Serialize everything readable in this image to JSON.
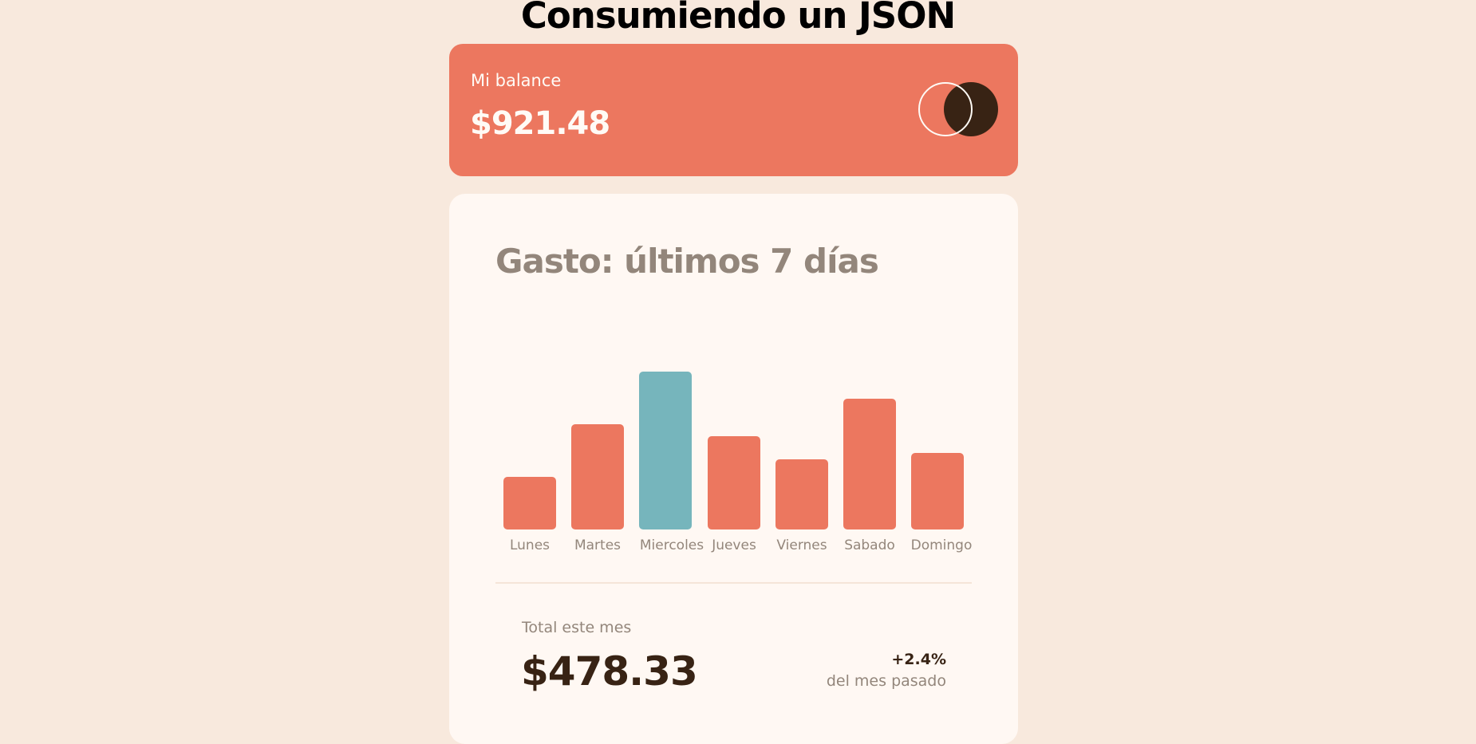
{
  "page": {
    "title": "Consumiendo un JSON"
  },
  "balance": {
    "label": "Mi balance",
    "amount": "$921.48"
  },
  "spending": {
    "title": "Gasto: últimos 7 días",
    "total_label": "Total este mes",
    "total_amount": "$478.33",
    "change_value": "+2.4%",
    "change_label": "del mes pasado"
  },
  "colors": {
    "bar": "#EC775F",
    "bar_highlight": "#76B5BC",
    "background": "#F8E9DD",
    "card": "#FFF8F3",
    "dark": "#382314",
    "muted": "#93867B"
  },
  "chart_data": {
    "type": "bar",
    "categories": [
      "Lunes",
      "Martes",
      "Miercoles",
      "Jueves",
      "Viernes",
      "Sabado",
      "Domingo"
    ],
    "values": [
      17.45,
      34.91,
      52.36,
      31.07,
      23.39,
      43.28,
      25.48
    ],
    "highlight_index": 2
  }
}
